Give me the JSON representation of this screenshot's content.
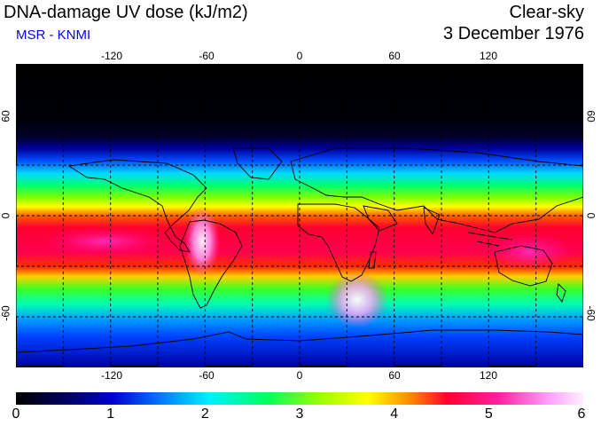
{
  "header": {
    "title": "DNA-damage UV dose (kJ/m2)",
    "subtitle": "MSR - KNMI",
    "product": "Clear-sky",
    "date": "3 December 1976"
  },
  "map": {
    "longitude_ticks": [
      "-120",
      "-60",
      "0",
      "60",
      "120"
    ],
    "latitude_ticks_left": [
      "60",
      "0",
      "-60"
    ],
    "latitude_ticks_right": [
      "60",
      "0",
      "-60"
    ],
    "lon_range": [
      -180,
      180
    ],
    "lat_range": [
      -90,
      90
    ],
    "grid": "dashed 30-degree graticule"
  },
  "colorbar": {
    "labels": [
      "0",
      "1",
      "2",
      "3",
      "4",
      "5",
      "6"
    ],
    "range": [
      0,
      6
    ],
    "colors": [
      "#000000",
      "#0000a0",
      "#0060ff",
      "#00e0ff",
      "#00ff40",
      "#ffff00",
      "#ff8000",
      "#ff0040",
      "#ff40c0",
      "#ffe0ff"
    ]
  }
}
